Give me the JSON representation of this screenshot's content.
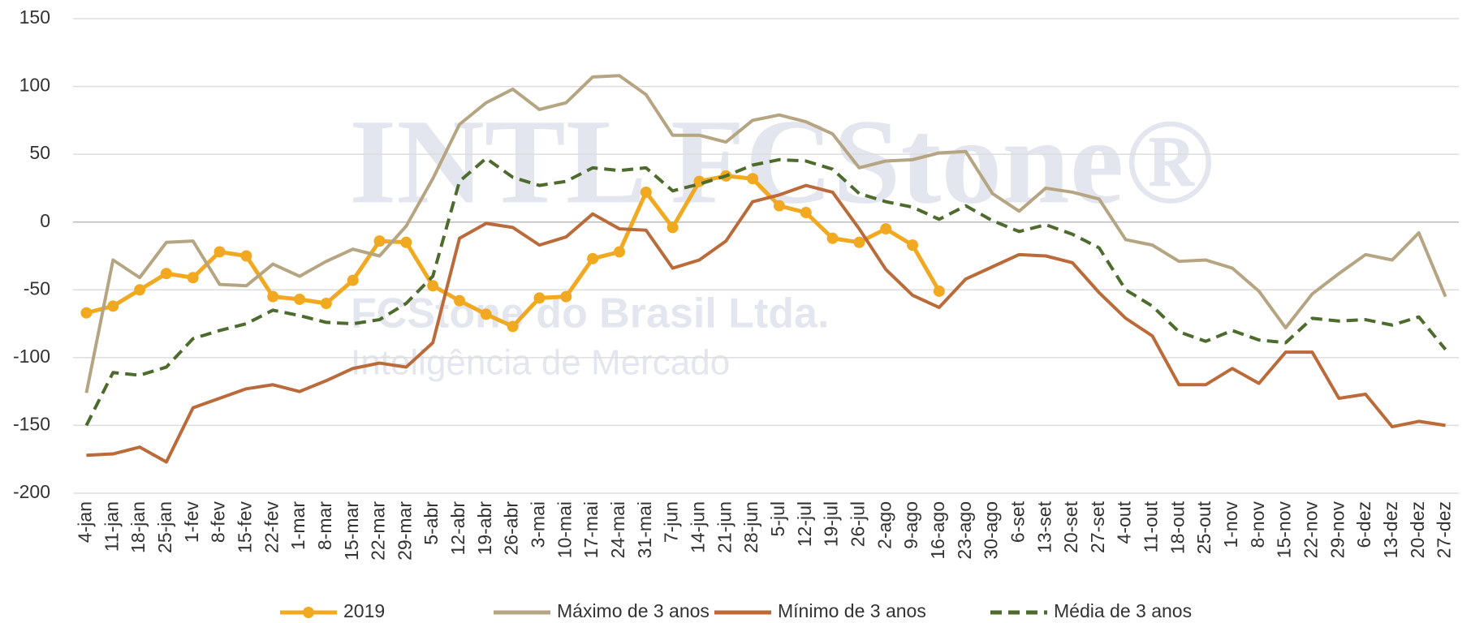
{
  "chart_data": {
    "type": "line",
    "categories": [
      "4-jan",
      "11-jan",
      "18-jan",
      "25-jan",
      "1-fev",
      "8-fev",
      "15-fev",
      "22-fev",
      "1-mar",
      "8-mar",
      "15-mar",
      "22-mar",
      "29-mar",
      "5-abr",
      "12-abr",
      "19-abr",
      "26-abr",
      "3-mai",
      "10-mai",
      "17-mai",
      "24-mai",
      "31-mai",
      "7-jun",
      "14-jun",
      "21-jun",
      "28-jun",
      "5-jul",
      "12-jul",
      "19-jul",
      "26-jul",
      "2-ago",
      "9-ago",
      "16-ago",
      "23-ago",
      "30-ago",
      "6-set",
      "13-set",
      "20-set",
      "27-set",
      "4-out",
      "11-out",
      "18-out",
      "25-out",
      "1-nov",
      "8-nov",
      "15-nov",
      "22-nov",
      "29-nov",
      "6-dez",
      "13-dez",
      "20-dez",
      "27-dez"
    ],
    "series": [
      {
        "name": "2019",
        "color": "#f0a920",
        "style": "solid-marker",
        "values": [
          -67,
          -62,
          -50,
          -38,
          -41,
          -22,
          -25,
          -55,
          -57,
          -60,
          -43,
          -14,
          -15,
          -47,
          -58,
          -68,
          -77,
          -56,
          -55,
          -27,
          -22,
          22,
          -4,
          30,
          34,
          32,
          12,
          7,
          -12,
          -15,
          -5,
          -17,
          -51,
          null,
          null,
          null,
          null,
          null,
          null,
          null,
          null,
          null,
          null,
          null,
          null,
          null,
          null,
          null,
          null,
          null,
          null,
          null
        ]
      },
      {
        "name": "Máximo de 3 anos",
        "color": "#b5a582",
        "style": "solid",
        "values": [
          -126,
          -28,
          -41,
          -15,
          -14,
          -46,
          -47,
          -31,
          -40,
          -29,
          -20,
          -25,
          -3,
          32,
          72,
          88,
          98,
          83,
          88,
          107,
          108,
          94,
          64,
          64,
          59,
          75,
          79,
          74,
          65,
          40,
          45,
          46,
          51,
          52,
          21,
          8,
          25,
          22,
          17,
          -13,
          -17,
          -29,
          -28,
          -34,
          -51,
          -78,
          -53,
          -38,
          -24,
          -28,
          -8,
          -55
        ]
      },
      {
        "name": "Mínimo de 3 anos",
        "color": "#bb6a3a",
        "style": "solid",
        "values": [
          -172,
          -171,
          -166,
          -177,
          -137,
          -130,
          -123,
          -120,
          -125,
          -117,
          -108,
          -104,
          -107,
          -89,
          -12,
          -1,
          -4,
          -17,
          -11,
          6,
          -5,
          -6,
          -34,
          -28,
          -14,
          15,
          20,
          27,
          22,
          -5,
          -35,
          -54,
          -63,
          -42,
          -33,
          -24,
          -25,
          -30,
          -52,
          -71,
          -84,
          -120,
          -120,
          -108,
          -119,
          -96,
          -96,
          -130,
          -127,
          -151,
          -147,
          -150
        ]
      },
      {
        "name": "Média de 3 anos",
        "color": "#4e6b2e",
        "style": "dashed",
        "values": [
          -150,
          -111,
          -113,
          -107,
          -86,
          -80,
          -75,
          -65,
          -69,
          -74,
          -75,
          -72,
          -60,
          -40,
          30,
          47,
          33,
          27,
          30,
          40,
          38,
          40,
          23,
          28,
          34,
          42,
          46,
          45,
          39,
          21,
          15,
          11,
          2,
          12,
          1,
          -7,
          -2,
          -9,
          -19,
          -50,
          -62,
          -81,
          -88,
          -80,
          -87,
          -89,
          -71,
          -73,
          -72,
          -76,
          -70,
          -94
        ]
      }
    ],
    "ylim": [
      -200,
      150
    ],
    "yticks": [
      -200,
      -150,
      -100,
      -50,
      0,
      50,
      100,
      150
    ],
    "grid": true,
    "legend": "bottom",
    "watermark": {
      "logo": "INTL FCStone®",
      "company": "FCStone do Brasil Ltda.",
      "tagline": "Inteligência de Mercado"
    }
  }
}
